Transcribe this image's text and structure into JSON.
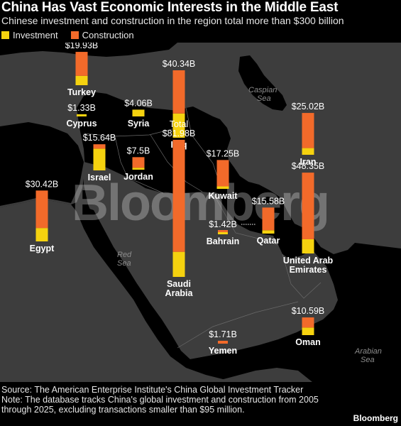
{
  "title": "China Has Vast Economic Interests in the Middle East",
  "subtitle": "Chinese investment and construction in the region total more than $300 billion",
  "legend": {
    "investment": "Investment",
    "construction": "Construction"
  },
  "colors": {
    "investment": "#f5d20f",
    "construction": "#f26a2a",
    "land": "#3d3d3d",
    "water": "#000000",
    "background": "#000000"
  },
  "watermark": "Bloomberg",
  "water_labels": {
    "caspian": "Caspian Sea",
    "red": "Red Sea",
    "arabian": "Arabian Sea"
  },
  "source": "Source: The American Enterprise Institute's China Global Investment Tracker",
  "note": "Note: The database tracks China's global investment and construction from 2005 through 2025, excluding transactions smaller than $95 million.",
  "brand": "Bloomberg",
  "chart_data": {
    "type": "bar",
    "title": "China Has Vast Economic Interests in the Middle East",
    "subtitle": "Chinese investment and construction in the region total more than $300 billion",
    "units": "USD billions",
    "stacked": true,
    "series": [
      {
        "name": "Investment",
        "key": "investment"
      },
      {
        "name": "Construction",
        "key": "construction"
      }
    ],
    "countries": [
      {
        "name": "Turkey",
        "total_label": "$19.93B",
        "total": 19.93,
        "investment": 5.6,
        "construction": 14.33
      },
      {
        "name": "Cyprus",
        "total_label": "$1.33B",
        "total": 1.33,
        "investment": 1.33,
        "construction": 0
      },
      {
        "name": "Syria",
        "total_label": "$4.06B",
        "total": 4.06,
        "investment": 4.06,
        "construction": 0
      },
      {
        "name": "Iraq",
        "total_label": "$40.34B",
        "total": 40.34,
        "investment": 14.5,
        "construction": 25.84
      },
      {
        "name": "Iran",
        "total_label": "$25.02B",
        "total": 25.02,
        "investment": 4.0,
        "construction": 21.02
      },
      {
        "name": "Israel",
        "total_label": "$15.64B",
        "total": 15.64,
        "investment": 13.0,
        "construction": 2.64
      },
      {
        "name": "Jordan",
        "total_label": "$7.5B",
        "total": 7.5,
        "investment": 1.2,
        "construction": 6.3
      },
      {
        "name": "Saudi Arabia",
        "total_label": "$81.98B",
        "total_prefix": "Total",
        "total": 81.98,
        "investment": 15.0,
        "construction": 66.98
      },
      {
        "name": "Kuwait",
        "total_label": "$17.25B",
        "total": 17.25,
        "investment": 1.5,
        "construction": 15.75
      },
      {
        "name": "Egypt",
        "total_label": "$30.42B",
        "total": 30.42,
        "investment": 8.0,
        "construction": 22.42
      },
      {
        "name": "Bahrain",
        "total_label": "$1.42B",
        "total": 1.42,
        "investment": 0.2,
        "construction": 1.22
      },
      {
        "name": "Qatar",
        "total_label": "$15.58B",
        "total": 15.58,
        "investment": 2.0,
        "construction": 13.58
      },
      {
        "name": "United Arab Emirates",
        "total_label": "$48.35B",
        "total": 48.35,
        "investment": 8.5,
        "construction": 39.85
      },
      {
        "name": "Oman",
        "total_label": "$10.59B",
        "total": 10.59,
        "investment": 4.5,
        "construction": 6.09
      },
      {
        "name": "Yemen",
        "total_label": "$1.71B",
        "total": 1.71,
        "investment": 0,
        "construction": 1.71
      }
    ]
  }
}
